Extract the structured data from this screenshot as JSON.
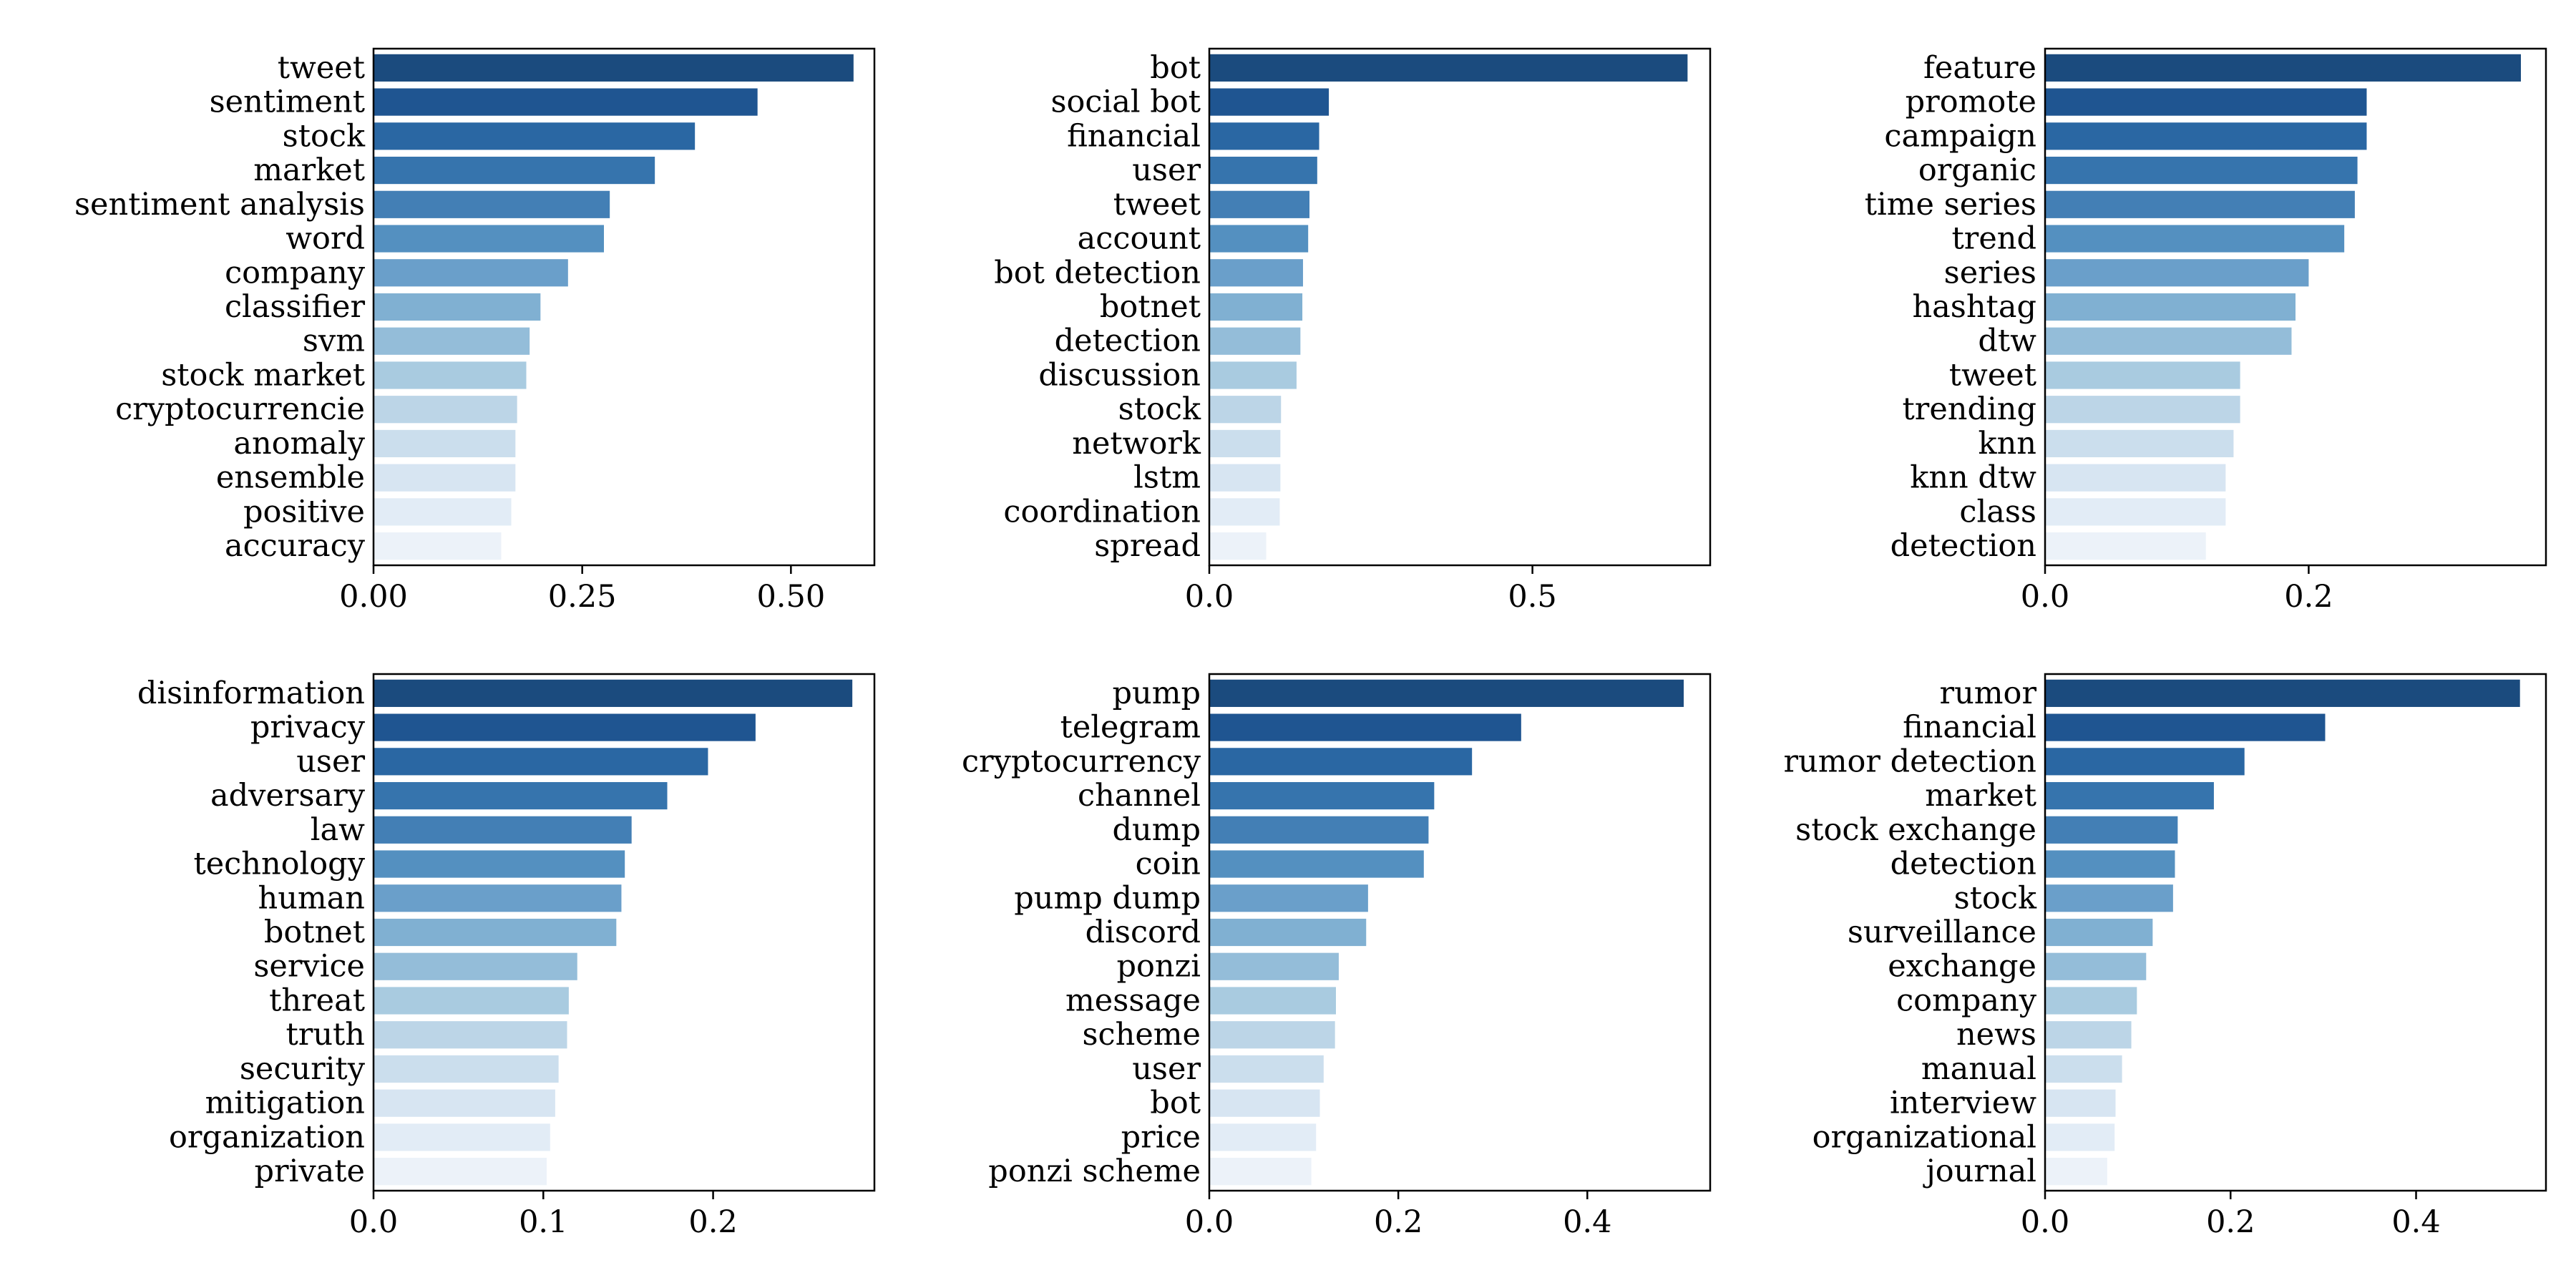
{
  "chart_data": [
    {
      "type": "bar",
      "orientation": "horizontal",
      "categories": [
        "tweet",
        "sentiment",
        "stock",
        "market",
        "sentiment analysis",
        "word",
        "company",
        "classifier",
        "svm",
        "stock market",
        "cryptocurrencie",
        "anomaly",
        "ensemble",
        "positive",
        "accuracy"
      ],
      "values": [
        0.575,
        0.46,
        0.385,
        0.337,
        0.283,
        0.276,
        0.233,
        0.2,
        0.187,
        0.183,
        0.172,
        0.17,
        0.17,
        0.165,
        0.153
      ],
      "xlim": [
        0,
        0.6
      ],
      "xticks": [
        0,
        0.25,
        0.5
      ],
      "xtick_labels": [
        "0.00",
        "0.25",
        "0.50"
      ]
    },
    {
      "type": "bar",
      "orientation": "horizontal",
      "categories": [
        "bot",
        "social bot",
        "financial",
        "user",
        "tweet",
        "account",
        "bot detection",
        "botnet",
        "detection",
        "discussion",
        "stock",
        "network",
        "lstm",
        "coordination",
        "spread"
      ],
      "values": [
        0.74,
        0.185,
        0.17,
        0.167,
        0.155,
        0.153,
        0.145,
        0.144,
        0.141,
        0.135,
        0.111,
        0.11,
        0.11,
        0.109,
        0.088
      ],
      "xlim": [
        0,
        0.775
      ],
      "xticks": [
        0,
        0.5
      ],
      "xtick_labels": [
        "0.0",
        "0.5"
      ]
    },
    {
      "type": "bar",
      "orientation": "horizontal",
      "categories": [
        "feature",
        "promote",
        "campaign",
        "organic",
        "time series",
        "trend",
        "series",
        "hashtag",
        "dtw",
        "tweet",
        "trending",
        "knn",
        "knn dtw",
        "class",
        "detection"
      ],
      "values": [
        0.361,
        0.244,
        0.244,
        0.237,
        0.235,
        0.227,
        0.2,
        0.19,
        0.187,
        0.148,
        0.148,
        0.143,
        0.137,
        0.137,
        0.122
      ],
      "xlim": [
        0,
        0.38
      ],
      "xticks": [
        0,
        0.2
      ],
      "xtick_labels": [
        "0.0",
        "0.2"
      ]
    },
    {
      "type": "bar",
      "orientation": "horizontal",
      "categories": [
        "disinformation",
        "privacy",
        "user",
        "adversary",
        "law",
        "technology",
        "human",
        "botnet",
        "service",
        "threat",
        "truth",
        "security",
        "mitigation",
        "organization",
        "private"
      ],
      "values": [
        0.282,
        0.225,
        0.197,
        0.173,
        0.152,
        0.148,
        0.146,
        0.143,
        0.12,
        0.115,
        0.114,
        0.109,
        0.107,
        0.104,
        0.102
      ],
      "xlim": [
        0,
        0.295
      ],
      "xticks": [
        0,
        0.1,
        0.2
      ],
      "xtick_labels": [
        "0.0",
        "0.1",
        "0.2"
      ]
    },
    {
      "type": "bar",
      "orientation": "horizontal",
      "categories": [
        "pump",
        "telegram",
        "cryptocurrency",
        "channel",
        "dump",
        "coin",
        "pump dump",
        "discord",
        "ponzi",
        "message",
        "scheme",
        "user",
        "bot",
        "price",
        "ponzi scheme"
      ],
      "values": [
        0.502,
        0.33,
        0.278,
        0.238,
        0.232,
        0.227,
        0.168,
        0.166,
        0.137,
        0.134,
        0.133,
        0.121,
        0.117,
        0.113,
        0.108
      ],
      "xlim": [
        0,
        0.53
      ],
      "xticks": [
        0,
        0.2,
        0.4
      ],
      "xtick_labels": [
        "0.0",
        "0.2",
        "0.4"
      ]
    },
    {
      "type": "bar",
      "orientation": "horizontal",
      "categories": [
        "rumor",
        "financial",
        "rumor detection",
        "market",
        "stock exchange",
        "detection",
        "stock",
        "surveillance",
        "exchange",
        "company",
        "news",
        "manual",
        "interview",
        "organizational",
        "journal"
      ],
      "values": [
        0.512,
        0.302,
        0.215,
        0.182,
        0.143,
        0.14,
        0.138,
        0.116,
        0.109,
        0.099,
        0.093,
        0.083,
        0.076,
        0.075,
        0.067
      ],
      "xlim": [
        0,
        0.54
      ],
      "xticks": [
        0,
        0.2,
        0.4
      ],
      "xtick_labels": [
        "0.0",
        "0.2",
        "0.4"
      ]
    }
  ]
}
